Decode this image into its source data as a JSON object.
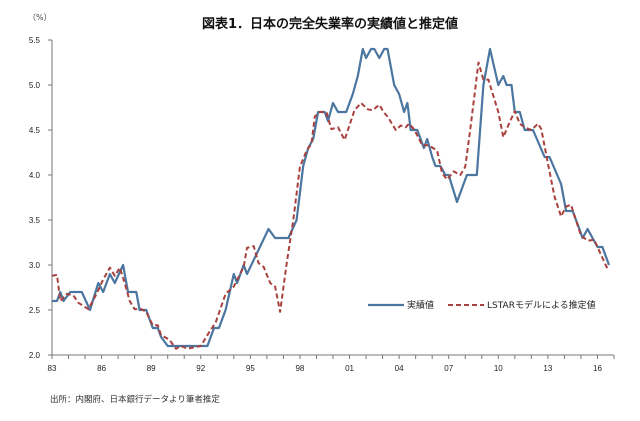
{
  "chart_data": {
    "type": "line",
    "title": "図表1．日本の完全失業率の実績値と推定値",
    "ylabel": "（%）",
    "xlabel": "",
    "ylim": [
      2.0,
      5.5
    ],
    "yticks": [
      "2.0",
      "2.5",
      "3.0",
      "3.5",
      "4.0",
      "4.5",
      "5.0",
      "5.5"
    ],
    "xlim": [
      1983,
      2017
    ],
    "xticks": [
      {
        "year": 1983,
        "label": "83"
      },
      {
        "year": 1986,
        "label": "86"
      },
      {
        "year": 1989,
        "label": "89"
      },
      {
        "year": 1992,
        "label": "92"
      },
      {
        "year": 1995,
        "label": "95"
      },
      {
        "year": 1998,
        "label": "98"
      },
      {
        "year": 2001,
        "label": "01"
      },
      {
        "year": 2004,
        "label": "04"
      },
      {
        "year": 2007,
        "label": "07"
      },
      {
        "year": 2010,
        "label": "10"
      },
      {
        "year": 2013,
        "label": "13"
      },
      {
        "year": 2016,
        "label": "16"
      }
    ],
    "grid": false,
    "legend_position": "lower-right",
    "series": [
      {
        "name": "実績値",
        "color": "#4a76a0",
        "style": "solid",
        "x": [
          1983.0,
          1983.3,
          1983.5,
          1983.7,
          1984.1,
          1984.8,
          1985.3,
          1985.8,
          1986.1,
          1986.5,
          1986.8,
          1987.3,
          1987.6,
          1988.1,
          1988.3,
          1988.7,
          1989.1,
          1989.4,
          1989.6,
          1990.0,
          1992.4,
          1992.8,
          1993.1,
          1993.5,
          1994.0,
          1994.2,
          1994.6,
          1994.8,
          1996.1,
          1996.5,
          1997.3,
          1997.8,
          1998.2,
          1998.5,
          1998.8,
          1999.1,
          1999.5,
          1999.7,
          2000.0,
          2000.3,
          2000.8,
          2001.2,
          2001.5,
          2001.8,
          2002.0,
          2002.3,
          2002.5,
          2002.8,
          2003.1,
          2003.3,
          2003.7,
          2004.0,
          2004.3,
          2004.5,
          2004.7,
          2005.1,
          2005.5,
          2005.7,
          2006.0,
          2006.2,
          2006.5,
          2006.8,
          2007.0,
          2007.5,
          2008.1,
          2008.7,
          2009.1,
          2009.5,
          2010.0,
          2010.3,
          2010.5,
          2010.8,
          2011.0,
          2011.3,
          2011.6,
          2012.1,
          2012.8,
          2013.1,
          2013.8,
          2014.1,
          2014.5,
          2015.1,
          2015.4,
          2016.0,
          2016.3,
          2016.7
        ],
        "y": [
          2.6,
          2.6,
          2.7,
          2.6,
          2.7,
          2.7,
          2.5,
          2.8,
          2.7,
          2.9,
          2.8,
          3.0,
          2.7,
          2.7,
          2.5,
          2.5,
          2.3,
          2.3,
          2.2,
          2.1,
          2.1,
          2.3,
          2.3,
          2.5,
          2.9,
          2.8,
          3.0,
          2.9,
          3.4,
          3.3,
          3.3,
          3.5,
          4.1,
          4.3,
          4.4,
          4.7,
          4.7,
          4.6,
          4.8,
          4.7,
          4.7,
          4.9,
          5.1,
          5.4,
          5.3,
          5.4,
          5.4,
          5.3,
          5.4,
          5.4,
          5.0,
          4.9,
          4.7,
          4.8,
          4.5,
          4.5,
          4.3,
          4.4,
          4.2,
          4.1,
          4.1,
          4.0,
          4.0,
          3.7,
          4.0,
          4.0,
          5.0,
          5.4,
          5.0,
          5.1,
          5.0,
          5.0,
          4.7,
          4.7,
          4.5,
          4.5,
          4.2,
          4.2,
          3.9,
          3.6,
          3.6,
          3.3,
          3.4,
          3.2,
          3.2,
          3.0
        ]
      },
      {
        "name": "LSTARモデルによる推定値",
        "color": "#a8413d",
        "style": "dashed",
        "x": [
          1983.0,
          1983.3,
          1983.5,
          1983.9,
          1984.3,
          1984.6,
          1985.2,
          1985.7,
          1986.1,
          1986.5,
          1986.8,
          1987.1,
          1987.4,
          1987.7,
          1988.0,
          1988.4,
          1988.7,
          1989.1,
          1989.4,
          1989.6,
          1990.1,
          1990.5,
          1990.8,
          1991.2,
          1992.0,
          1992.5,
          1992.9,
          1993.5,
          1994.0,
          1994.6,
          1994.8,
          1995.2,
          1995.5,
          1995.8,
          1996.2,
          1996.5,
          1996.8,
          1997.2,
          1997.6,
          1998.0,
          1998.4,
          1998.7,
          1998.9,
          1999.2,
          1999.6,
          1999.9,
          2000.3,
          2000.7,
          2001.3,
          2001.7,
          2002.1,
          2002.4,
          2002.8,
          2003.1,
          2003.3,
          2003.8,
          2004.1,
          2004.4,
          2004.6,
          2004.9,
          2005.4,
          2005.8,
          2006.3,
          2006.6,
          2006.9,
          2007.3,
          2007.7,
          2008.0,
          2008.3,
          2008.8,
          2009.1,
          2009.4,
          2010.0,
          2010.3,
          2010.6,
          2011.0,
          2011.3,
          2011.6,
          2012.0,
          2012.4,
          2012.6,
          2013.0,
          2013.4,
          2013.8,
          2014.1,
          2014.4,
          2015.0,
          2015.4,
          2015.8,
          2016.1,
          2016.6
        ],
        "y": [
          2.88,
          2.89,
          2.6,
          2.68,
          2.66,
          2.58,
          2.51,
          2.68,
          2.84,
          2.97,
          2.88,
          2.97,
          2.8,
          2.6,
          2.51,
          2.51,
          2.48,
          2.33,
          2.33,
          2.22,
          2.17,
          2.07,
          2.1,
          2.07,
          2.1,
          2.25,
          2.36,
          2.68,
          2.76,
          2.98,
          3.19,
          3.21,
          3.02,
          2.98,
          2.8,
          2.76,
          2.48,
          3.02,
          3.5,
          4.09,
          4.27,
          4.35,
          4.65,
          4.7,
          4.7,
          4.51,
          4.53,
          4.39,
          4.72,
          4.8,
          4.73,
          4.72,
          4.78,
          4.69,
          4.65,
          4.5,
          4.55,
          4.53,
          4.57,
          4.51,
          4.33,
          4.33,
          4.27,
          4.02,
          3.95,
          4.04,
          4.0,
          4.09,
          4.5,
          5.25,
          5.06,
          5.06,
          4.7,
          4.42,
          4.55,
          4.71,
          4.57,
          4.53,
          4.5,
          4.57,
          4.51,
          4.13,
          3.76,
          3.54,
          3.65,
          3.67,
          3.33,
          3.27,
          3.28,
          3.16,
          2.96
        ]
      }
    ]
  },
  "source_note": "出所：内閣府、日本銀行データより筆者推定"
}
